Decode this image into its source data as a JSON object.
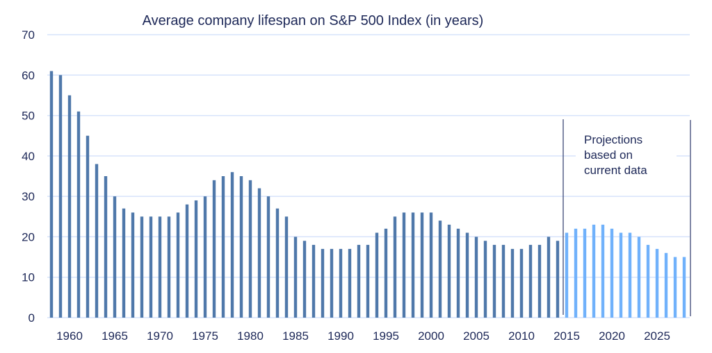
{
  "chart_data": {
    "type": "bar",
    "title": "Average company lifespan on S&P 500  Index (in years)",
    "xlabel": "",
    "ylabel": "",
    "ylim": [
      0,
      70
    ],
    "yticks": [
      "0",
      "10",
      "20",
      "30",
      "40",
      "50",
      "60",
      "70"
    ],
    "xticks": [
      "1960",
      "1965",
      "1970",
      "1975",
      "1980",
      "1985",
      "1990",
      "1995",
      "2000",
      "2005",
      "2010",
      "2015",
      "2020",
      "2025"
    ],
    "grid": true,
    "annotation": "Projections based on current data",
    "annotation_lines": [
      "Projections",
      "based on",
      "current data"
    ],
    "projection_start_year": 2015,
    "colors": {
      "historical": "#4f78aa",
      "projection": "#70b1fb",
      "grid": "#d6e3fb",
      "text": "#1c2757"
    },
    "years": [
      1958,
      1959,
      1960,
      1961,
      1962,
      1963,
      1964,
      1965,
      1966,
      1967,
      1968,
      1969,
      1970,
      1971,
      1972,
      1973,
      1974,
      1975,
      1976,
      1977,
      1978,
      1979,
      1980,
      1981,
      1982,
      1983,
      1984,
      1985,
      1986,
      1987,
      1988,
      1989,
      1990,
      1991,
      1992,
      1993,
      1994,
      1995,
      1996,
      1997,
      1998,
      1999,
      2000,
      2001,
      2002,
      2003,
      2004,
      2005,
      2006,
      2007,
      2008,
      2009,
      2010,
      2011,
      2012,
      2013,
      2014,
      2015,
      2016,
      2017,
      2018,
      2019,
      2020,
      2021,
      2022,
      2023,
      2024,
      2025,
      2026,
      2027,
      2028
    ],
    "values": [
      61,
      60,
      55,
      51,
      45,
      38,
      35,
      30,
      27,
      26,
      25,
      25,
      25,
      25,
      26,
      28,
      29,
      30,
      34,
      35,
      36,
      35,
      34,
      32,
      30,
      27,
      25,
      20,
      19,
      18,
      17,
      17,
      17,
      17,
      18,
      18,
      21,
      22,
      25,
      26,
      26,
      26,
      26,
      24,
      23,
      22,
      21,
      20,
      19,
      18,
      18,
      17,
      17,
      18,
      18,
      20,
      19,
      21,
      22,
      22,
      23,
      23,
      22,
      21,
      21,
      20,
      18,
      17,
      16,
      15,
      15
    ]
  }
}
